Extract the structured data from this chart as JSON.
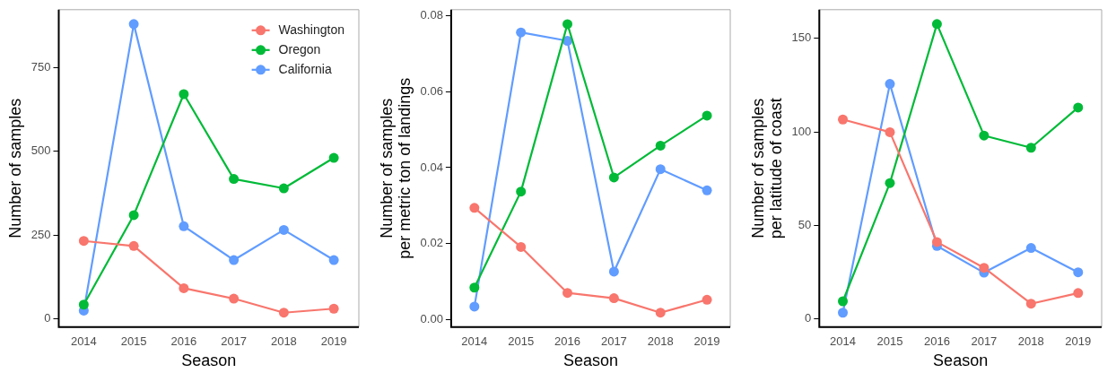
{
  "chart_data": [
    {
      "type": "line",
      "xlabel": "Season",
      "ylabel": "Number of samples",
      "categories": [
        "2014",
        "2015",
        "2016",
        "2017",
        "2018",
        "2019"
      ],
      "ylim": [
        -25,
        922
      ],
      "yticks": [
        0,
        250,
        500,
        750
      ],
      "grid": false,
      "legend": "top right",
      "marker": "circle",
      "line_style": "solid",
      "series": [
        {
          "name": "Washington",
          "color": "#f8766d",
          "values": [
            232,
            217,
            91,
            60,
            18,
            30
          ]
        },
        {
          "name": "Oregon",
          "color": "#00ba38",
          "values": [
            42,
            309,
            670,
            417,
            389,
            480
          ]
        },
        {
          "name": "California",
          "color": "#619cff",
          "values": [
            24,
            879,
            276,
            175,
            265,
            175
          ]
        }
      ]
    },
    {
      "type": "line",
      "xlabel": "Season",
      "ylabel": "Number of samples\nper metric ton of landings",
      "categories": [
        "2014",
        "2015",
        "2016",
        "2017",
        "2018",
        "2019"
      ],
      "ylim": [
        -0.002,
        0.0816
      ],
      "yticks": [
        {
          "value": 0,
          "label": "0.00"
        },
        {
          "value": 0.02,
          "label": "0.02"
        },
        {
          "value": 0.04,
          "label": "0.04"
        },
        {
          "value": 0.06,
          "label": "0.06"
        },
        {
          "value": 0.08,
          "label": "0.08"
        }
      ],
      "grid": false,
      "marker": "circle",
      "line_style": "solid",
      "series": [
        {
          "color": "#f8766d",
          "values": [
            0.0294,
            0.0191,
            0.007,
            0.0056,
            0.0018,
            0.0052
          ]
        },
        {
          "color": "#00ba38",
          "values": [
            0.0084,
            0.0337,
            0.0778,
            0.0374,
            0.0458,
            0.0537
          ]
        },
        {
          "color": "#619cff",
          "values": [
            0.0034,
            0.0756,
            0.0734,
            0.0126,
            0.0396,
            0.034
          ]
        }
      ]
    },
    {
      "type": "line",
      "xlabel": "Season",
      "ylabel": "Number of samples\nper latitude of coast",
      "categories": [
        "2014",
        "2015",
        "2016",
        "2017",
        "2018",
        "2019"
      ],
      "ylim": [
        -4.4,
        165.3
      ],
      "yticks": [
        0,
        50,
        100,
        150
      ],
      "grid": false,
      "marker": "circle",
      "line_style": "solid",
      "series": [
        {
          "color": "#f8766d",
          "values": [
            106.6,
            99.8,
            41.1,
            27.3,
            8.1,
            13.8
          ]
        },
        {
          "color": "#00ba38",
          "values": [
            9.4,
            72.6,
            157.6,
            98.0,
            91.5,
            113.0
          ]
        },
        {
          "color": "#619cff",
          "values": [
            3.3,
            125.6,
            39.0,
            24.7,
            37.9,
            24.9
          ]
        }
      ]
    }
  ]
}
